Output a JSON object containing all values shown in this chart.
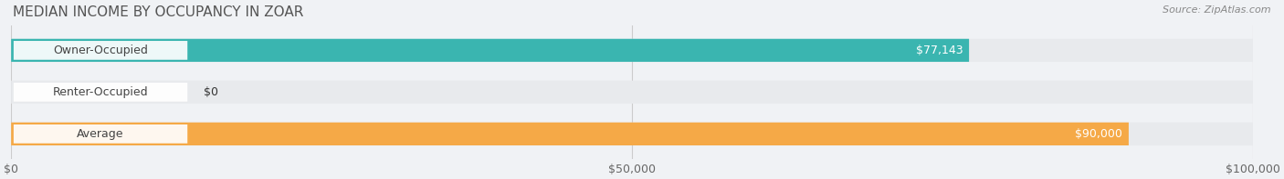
{
  "title": "MEDIAN INCOME BY OCCUPANCY IN ZOAR",
  "source": "Source: ZipAtlas.com",
  "categories": [
    "Owner-Occupied",
    "Renter-Occupied",
    "Average"
  ],
  "values": [
    77143,
    0,
    90000
  ],
  "bar_colors": [
    "#3ab5b0",
    "#c9a8d4",
    "#f5a947"
  ],
  "bar_labels": [
    "$77,143",
    "$0",
    "$90,000"
  ],
  "xlim": [
    0,
    100000
  ],
  "xticks": [
    0,
    50000,
    100000
  ],
  "xtick_labels": [
    "$0",
    "$50,000",
    "$100,000"
  ],
  "bg_color": "#f0f2f5",
  "bar_bg_color": "#e8eaed",
  "title_fontsize": 11,
  "source_fontsize": 8,
  "label_fontsize": 9,
  "tick_fontsize": 9,
  "figsize": [
    14.06,
    1.97
  ],
  "dpi": 100
}
